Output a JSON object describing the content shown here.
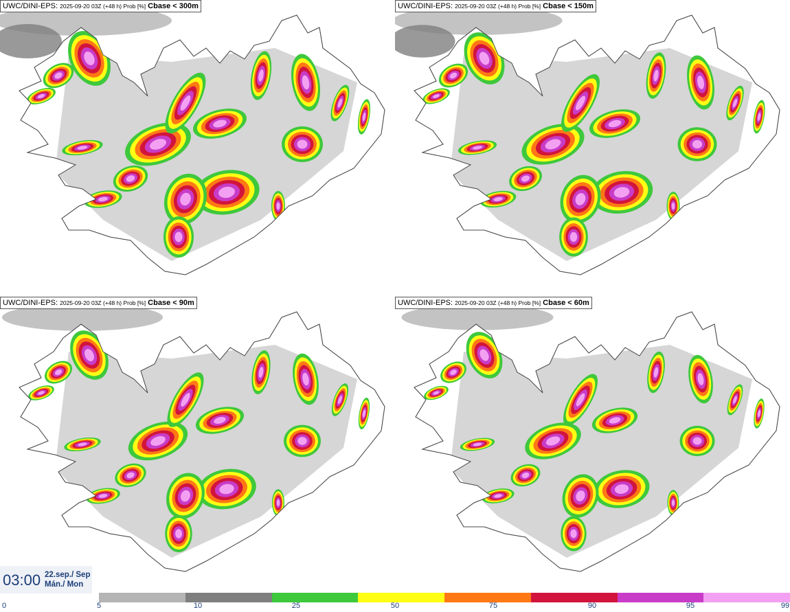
{
  "panels": [
    {
      "model": "UWC/DINI-EPS",
      "run": "2025-09-20 03Z (+48 h) Prob [%]",
      "variable": "Cbase < 300m"
    },
    {
      "model": "UWC/DINI-EPS",
      "run": "2025-09-20 03Z (+48 h) Prob [%]",
      "variable": "Cbase < 150m"
    },
    {
      "model": "UWC/DINI-EPS",
      "run": "2025-09-20 03Z (+48 h) Prob [%]",
      "variable": "Cbase < 90m"
    },
    {
      "model": "UWC/DINI-EPS",
      "run": "2025-09-20 03Z (+48 h) Prob [%]",
      "variable": "Cbase < 60m"
    }
  ],
  "valid_time": {
    "time": "03:00",
    "date_line1": "22.sep./ Sep",
    "date_line2": "Mán./ Mon"
  },
  "legend": {
    "ticks": [
      "0",
      "5",
      "10",
      "25",
      "50",
      "75",
      "90",
      "95",
      "99"
    ],
    "colors": [
      "#b4b4b4",
      "#7f7f7f",
      "#3ec83c",
      "#ffff14",
      "#ff7814",
      "#d2143c",
      "#c83cc8",
      "#f3a0f3"
    ]
  }
}
